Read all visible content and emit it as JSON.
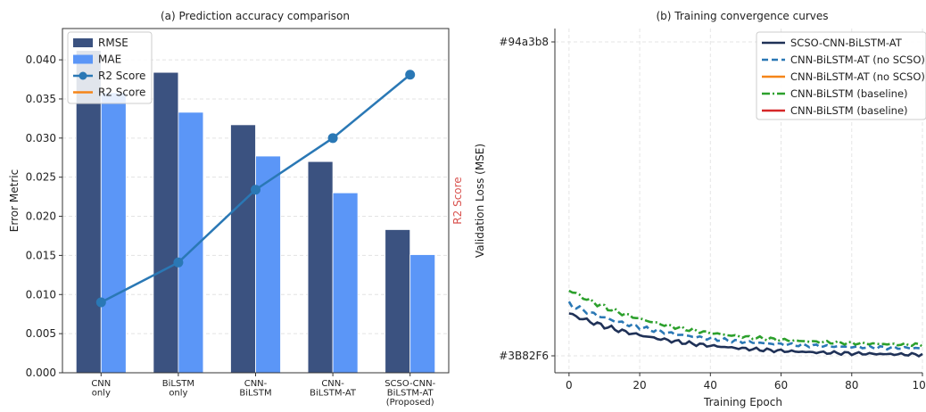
{
  "chart_data": [
    {
      "type": "bar",
      "title": "(a) Prediction accuracy comparison",
      "xlabel": "",
      "ylabel": "Error Metric",
      "y2label": "R2 Score",
      "ylim": [
        0,
        0.044
      ],
      "yticks": [
        "0.000",
        "0.005",
        "0.010",
        "0.015",
        "0.020",
        "0.025",
        "0.030",
        "0.035",
        "0.040"
      ],
      "categories": [
        [
          "CNN",
          "only"
        ],
        [
          "BiLSTM",
          "only"
        ],
        [
          "CNN-",
          "BiLSTM"
        ],
        [
          "CNN-",
          "BiLSTM-AT"
        ],
        [
          "SCSO-CNN-",
          "BiLSTM-AT",
          "(Proposed)"
        ]
      ],
      "series": [
        {
          "name": "RMSE",
          "kind": "bar",
          "color": "#3B5280",
          "values": [
            0.0412,
            0.0384,
            0.0317,
            0.027,
            0.0183
          ]
        },
        {
          "name": "MAE",
          "kind": "bar",
          "color": "#5B96F7",
          "values": [
            0.0358,
            0.0333,
            0.0277,
            0.023,
            0.0151
          ]
        },
        {
          "name": "R2 Score",
          "kind": "line",
          "color": "#2A78B5",
          "values": [
            0.009,
            0.0141,
            0.0234,
            0.03,
            0.0381
          ]
        }
      ],
      "legend": [
        {
          "name": "RMSE",
          "kind": "patch",
          "color": "#3B5280"
        },
        {
          "name": "MAE",
          "kind": "patch",
          "color": "#5B96F7"
        },
        {
          "name": "R2 Score",
          "kind": "marker-line",
          "color": "#2A78B5"
        },
        {
          "name": "R2 Score",
          "kind": "line",
          "color": "#F58518"
        }
      ],
      "legend_position": "top-left",
      "grid": true
    },
    {
      "type": "line",
      "title": "(b) Training convergence curves",
      "xlabel": "Training Epoch",
      "ylabel": "Validation Loss (MSE)",
      "xlim": [
        -4,
        100
      ],
      "xticks": [
        0,
        20,
        40,
        60,
        80,
        100
      ],
      "ytick_labels": [
        {
          "label": "#94a3b8",
          "level": 1.0
        },
        {
          "label": "#3B82F6",
          "level": 0.0
        }
      ],
      "series": [
        {
          "name": "SCSO-CNN-BiLSTM-AT",
          "color": "#1F3157",
          "dash": "solid",
          "start": 0.135,
          "end": 0.0
        },
        {
          "name": "CNN-BiLSTM-AT (no SCSO)",
          "color": "#2A78B5",
          "dash": "dashed",
          "start": 0.165,
          "end": 0.02
        },
        {
          "name": "CNN-BiLSTM (baseline)",
          "color": "#2CA02C",
          "dash": "dashdot",
          "start": 0.21,
          "end": 0.03
        }
      ],
      "legend": [
        {
          "name": "SCSO-CNN-BiLSTM-AT",
          "color": "#1F3157",
          "dash": "solid"
        },
        {
          "name": "CNN-BiLSTM-AT (no SCSO)",
          "color": "#2A78B5",
          "dash": "dashed"
        },
        {
          "name": "CNN-BiLSTM-AT (no SCSO)",
          "color": "#F58518",
          "dash": "solid"
        },
        {
          "name": "CNN-BiLSTM (baseline)",
          "color": "#2CA02C",
          "dash": "dashdot"
        },
        {
          "name": "CNN-BiLSTM (baseline)",
          "color": "#D62728",
          "dash": "solid"
        }
      ],
      "legend_position": "top-right",
      "grid": true
    }
  ]
}
